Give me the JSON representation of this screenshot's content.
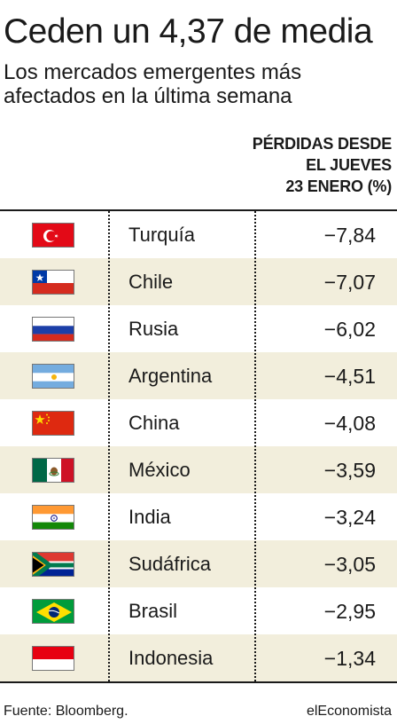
{
  "header": {
    "title": "Ceden un 4,37 de media",
    "subtitle": "Los mercados emergentes más afectados en la última semana"
  },
  "column_header": {
    "line1": "PÉRDIDAS DESDE",
    "line2": "EL JUEVES",
    "line3": "23 ENERO (%)"
  },
  "chart_data": {
    "type": "table",
    "title": "Ceden un 4,37 de media",
    "subtitle": "Los mercados emergentes más afectados en la última semana",
    "columns": [
      "PÉRDIDAS DESDE EL JUEVES 23 ENERO (%)"
    ],
    "rows": [
      {
        "country": "Turquía",
        "value": -7.84,
        "display": "−7,84",
        "flag": "turkey-flag-icon"
      },
      {
        "country": "Chile",
        "value": -7.07,
        "display": "−7,07",
        "flag": "chile-flag-icon"
      },
      {
        "country": "Rusia",
        "value": -6.02,
        "display": "−6,02",
        "flag": "russia-flag-icon"
      },
      {
        "country": "Argentina",
        "value": -4.51,
        "display": "−4,51",
        "flag": "argentina-flag-icon"
      },
      {
        "country": "China",
        "value": -4.08,
        "display": "−4,08",
        "flag": "china-flag-icon"
      },
      {
        "country": "México",
        "value": -3.59,
        "display": "−3,59",
        "flag": "mexico-flag-icon"
      },
      {
        "country": "India",
        "value": -3.24,
        "display": "−3,24",
        "flag": "india-flag-icon"
      },
      {
        "country": "Sudáfrica",
        "value": -3.05,
        "display": "−3,05",
        "flag": "south-africa-flag-icon"
      },
      {
        "country": "Brasil",
        "value": -2.95,
        "display": "−2,95",
        "flag": "brazil-flag-icon"
      },
      {
        "country": "Indonesia",
        "value": -1.34,
        "display": "−1,34",
        "flag": "indonesia-flag-icon"
      }
    ]
  },
  "colors": {
    "row_alt": "#f2eedc",
    "text": "#1a1a1a"
  },
  "footer": {
    "source": "Fuente: Bloomberg.",
    "brand": "elEconomista"
  }
}
